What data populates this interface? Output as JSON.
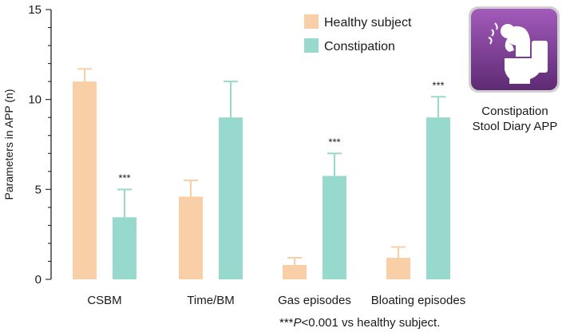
{
  "chart_data": {
    "type": "bar",
    "title": "",
    "xlabel": "",
    "ylabel": "Parameters in APP (n)",
    "ylim": [
      0,
      15
    ],
    "yticks": [
      "0",
      "5",
      "10",
      "15"
    ],
    "categories": [
      "CSBM",
      "Time/BM",
      "Gas episodes",
      "Bloating episodes"
    ],
    "series": [
      {
        "name": "Healthy subject",
        "color": "#f9cfa7",
        "values": [
          11.0,
          4.6,
          0.8,
          1.2
        ],
        "error_upper": [
          11.7,
          5.5,
          1.2,
          1.8
        ]
      },
      {
        "name": "Constipation",
        "color": "#98d9cd",
        "values": [
          3.45,
          9.0,
          5.75,
          9.0
        ],
        "error_upper": [
          5.0,
          11.0,
          7.0,
          10.15
        ]
      }
    ],
    "significance": [
      "***",
      "",
      "***",
      "***"
    ],
    "legend_position": "top-right",
    "grid": false
  },
  "footnote": {
    "stars": "***",
    "p": "P",
    "rest": "<0.001 vs healthy subject."
  },
  "app": {
    "icon": "constipation-toilet-icon",
    "icon_bg": "#7d3f93",
    "caption_line1": "Constipation",
    "caption_line2": "Stool Diary APP"
  }
}
